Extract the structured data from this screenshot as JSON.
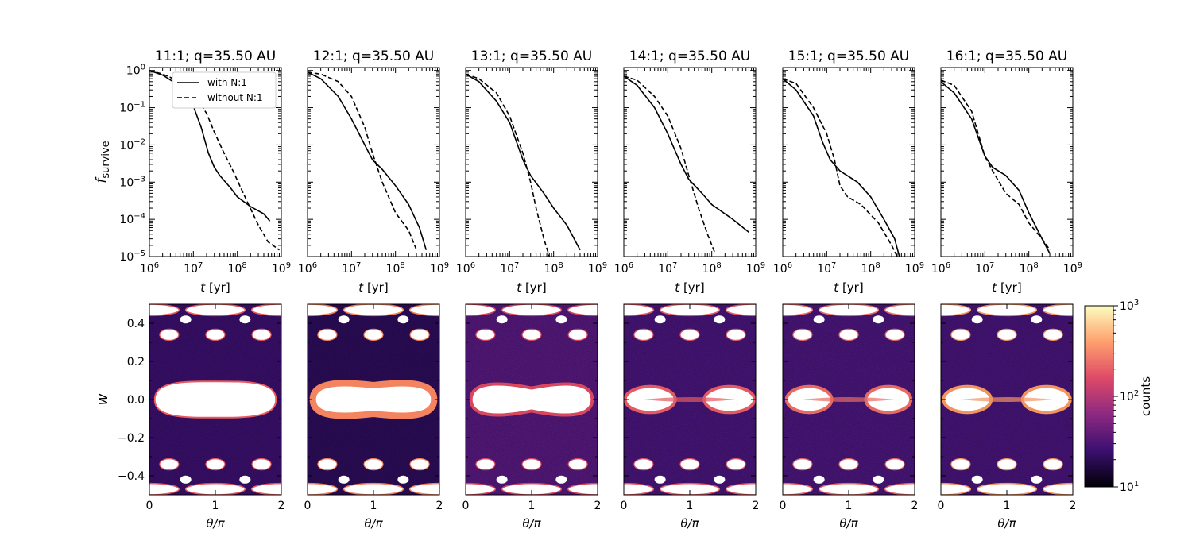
{
  "chart_data": [
    {
      "type": "line",
      "panel": "11:1",
      "title": "11:1; q=35.50 AU",
      "xlabel": "t [yr]",
      "ylabel": "f_survive",
      "xscale": "log",
      "yscale": "log",
      "xlim": [
        1000000,
        1000000000
      ],
      "ylim": [
        1e-05,
        1.2
      ],
      "xticks": [
        "10^6",
        "10^7",
        "10^8",
        "10^9"
      ],
      "yticks": [
        "10^0",
        "10^-1",
        "10^-2",
        "10^-3",
        "10^-4",
        "10^-5"
      ],
      "legend": {
        "placement": "top-right",
        "entries": [
          "with N:1",
          "without N:1"
        ]
      },
      "series": [
        {
          "name": "with N:1",
          "style": "solid",
          "points": [
            [
              1000000,
              1.0
            ],
            [
              2000000,
              0.75
            ],
            [
              5000000,
              0.38
            ],
            [
              10000000,
              0.11
            ],
            [
              15000000,
              0.03
            ],
            [
              22000000,
              0.006
            ],
            [
              30000000,
              0.0025
            ],
            [
              40000000,
              0.0015
            ],
            [
              70000000,
              0.0007
            ],
            [
              100000000,
              0.0004
            ],
            [
              200000000,
              0.00022
            ],
            [
              400000000,
              0.00014
            ],
            [
              550000000,
              9e-05
            ]
          ]
        },
        {
          "name": "without N:1",
          "style": "dashed",
          "points": [
            [
              1000000,
              1.0
            ],
            [
              2000000,
              0.8
            ],
            [
              5000000,
              0.5
            ],
            [
              10000000,
              0.25
            ],
            [
              20000000,
              0.07
            ],
            [
              30000000,
              0.022
            ],
            [
              50000000,
              0.006
            ],
            [
              80000000,
              0.002
            ],
            [
              120000000,
              0.0007
            ],
            [
              180000000,
              0.00025
            ],
            [
              300000000,
              7e-05
            ],
            [
              500000000,
              2.5e-05
            ],
            [
              900000000,
              1.5e-05
            ]
          ]
        }
      ]
    },
    {
      "type": "line",
      "panel": "12:1",
      "title": "12:1; q=35.50 AU",
      "xlabel": "t [yr]",
      "xscale": "log",
      "yscale": "log",
      "xlim": [
        1000000,
        1000000000
      ],
      "ylim": [
        1e-05,
        1.2
      ],
      "xticks": [
        "10^6",
        "10^7",
        "10^8",
        "10^9"
      ],
      "series": [
        {
          "name": "with N:1",
          "style": "solid",
          "points": [
            [
              1000000,
              0.9
            ],
            [
              2000000,
              0.6
            ],
            [
              5000000,
              0.2
            ],
            [
              10000000,
              0.05
            ],
            [
              20000000,
              0.01
            ],
            [
              30000000,
              0.004
            ],
            [
              50000000,
              0.0022
            ],
            [
              100000000,
              0.0008
            ],
            [
              200000000,
              0.00025
            ],
            [
              350000000,
              6e-05
            ],
            [
              500000000,
              1.5e-05
            ]
          ]
        },
        {
          "name": "without N:1",
          "style": "dashed",
          "points": [
            [
              1000000,
              0.9
            ],
            [
              2000000,
              0.8
            ],
            [
              5000000,
              0.5
            ],
            [
              10000000,
              0.2
            ],
            [
              20000000,
              0.03
            ],
            [
              30000000,
              0.006
            ],
            [
              50000000,
              0.001
            ],
            [
              100000000,
              0.00015
            ],
            [
              200000000,
              5e-05
            ],
            [
              300000000,
              1.5e-05
            ]
          ]
        }
      ]
    },
    {
      "type": "line",
      "panel": "13:1",
      "title": "13:1; q=35.50 AU",
      "xlabel": "t [yr]",
      "xscale": "log",
      "yscale": "log",
      "xlim": [
        1000000,
        1000000000
      ],
      "ylim": [
        1e-05,
        1.2
      ],
      "xticks": [
        "10^6",
        "10^7",
        "10^8",
        "10^9"
      ],
      "series": [
        {
          "name": "with N:1",
          "style": "solid",
          "points": [
            [
              1000000,
              0.8
            ],
            [
              2000000,
              0.5
            ],
            [
              5000000,
              0.15
            ],
            [
              10000000,
              0.04
            ],
            [
              20000000,
              0.004
            ],
            [
              30000000,
              0.0015
            ],
            [
              60000000,
              0.0005
            ],
            [
              100000000,
              0.0002
            ],
            [
              200000000,
              7e-05
            ],
            [
              400000000,
              1.5e-05
            ]
          ]
        },
        {
          "name": "without N:1",
          "style": "dashed",
          "points": [
            [
              1000000,
              0.8
            ],
            [
              2000000,
              0.6
            ],
            [
              5000000,
              0.25
            ],
            [
              10000000,
              0.06
            ],
            [
              20000000,
              0.006
            ],
            [
              30000000,
              0.001
            ],
            [
              40000000,
              0.0002
            ],
            [
              60000000,
              3e-05
            ],
            [
              80000000,
              1e-05
            ]
          ]
        }
      ]
    },
    {
      "type": "line",
      "panel": "14:1",
      "title": "14:1; q=35.50 AU",
      "xlabel": "t [yr]",
      "xscale": "log",
      "yscale": "log",
      "xlim": [
        1000000,
        1000000000
      ],
      "ylim": [
        1e-05,
        1.2
      ],
      "xticks": [
        "10^6",
        "10^7",
        "10^8",
        "10^9"
      ],
      "series": [
        {
          "name": "with N:1",
          "style": "solid",
          "points": [
            [
              1000000,
              0.7
            ],
            [
              2000000,
              0.4
            ],
            [
              5000000,
              0.1
            ],
            [
              10000000,
              0.02
            ],
            [
              20000000,
              0.003
            ],
            [
              30000000,
              0.0012
            ],
            [
              60000000,
              0.0005
            ],
            [
              100000000,
              0.00025
            ],
            [
              300000000,
              0.0001
            ],
            [
              700000000,
              4.5e-05
            ]
          ]
        },
        {
          "name": "without N:1",
          "style": "dashed",
          "points": [
            [
              1000000,
              0.7
            ],
            [
              2000000,
              0.55
            ],
            [
              5000000,
              0.2
            ],
            [
              10000000,
              0.06
            ],
            [
              20000000,
              0.008
            ],
            [
              30000000,
              0.0015
            ],
            [
              50000000,
              0.0002
            ],
            [
              80000000,
              4e-05
            ],
            [
              120000000,
              1.2e-05
            ]
          ]
        }
      ]
    },
    {
      "type": "line",
      "panel": "15:1",
      "title": "15:1; q=35.50 AU",
      "xlabel": "t [yr]",
      "xscale": "log",
      "yscale": "log",
      "xlim": [
        1000000,
        1000000000
      ],
      "ylim": [
        1e-05,
        1.2
      ],
      "xticks": [
        "10^6",
        "10^7",
        "10^8",
        "10^9"
      ],
      "series": [
        {
          "name": "with N:1",
          "style": "solid",
          "points": [
            [
              1000000,
              0.6
            ],
            [
              2000000,
              0.3
            ],
            [
              5000000,
              0.06
            ],
            [
              8000000,
              0.012
            ],
            [
              12000000,
              0.004
            ],
            [
              20000000,
              0.002
            ],
            [
              50000000,
              0.001
            ],
            [
              100000000,
              0.0004
            ],
            [
              200000000,
              0.0001
            ],
            [
              350000000,
              3e-05
            ],
            [
              450000000,
              1e-05
            ]
          ]
        },
        {
          "name": "without N:1",
          "style": "dashed",
          "points": [
            [
              1000000,
              0.6
            ],
            [
              2000000,
              0.45
            ],
            [
              5000000,
              0.1
            ],
            [
              10000000,
              0.02
            ],
            [
              15000000,
              0.004
            ],
            [
              20000000,
              0.0008
            ],
            [
              30000000,
              0.0004
            ],
            [
              60000000,
              0.00025
            ],
            [
              150000000,
              8e-05
            ],
            [
              300000000,
              2e-05
            ],
            [
              400000000,
              1e-05
            ]
          ]
        }
      ]
    },
    {
      "type": "line",
      "panel": "16:1",
      "title": "16:1; q=35.50 AU",
      "xlabel": "t [yr]",
      "xscale": "log",
      "yscale": "log",
      "xlim": [
        1000000,
        1000000000
      ],
      "ylim": [
        1e-05,
        1.2
      ],
      "xticks": [
        "10^6",
        "10^7",
        "10^8",
        "10^9"
      ],
      "series": [
        {
          "name": "with N:1",
          "style": "solid",
          "points": [
            [
              1000000,
              0.5
            ],
            [
              2000000,
              0.25
            ],
            [
              5000000,
              0.05
            ],
            [
              10000000,
              0.005
            ],
            [
              15000000,
              0.0025
            ],
            [
              30000000,
              0.0015
            ],
            [
              60000000,
              0.0006
            ],
            [
              100000000,
              0.00015
            ],
            [
              200000000,
              3e-05
            ],
            [
              300000000,
              1.2e-05
            ]
          ]
        },
        {
          "name": "without N:1",
          "style": "dashed",
          "points": [
            [
              1000000,
              0.55
            ],
            [
              2000000,
              0.4
            ],
            [
              5000000,
              0.08
            ],
            [
              10000000,
              0.005
            ],
            [
              15000000,
              0.002
            ],
            [
              30000000,
              0.0005
            ],
            [
              60000000,
              0.00025
            ],
            [
              100000000,
              8e-05
            ],
            [
              200000000,
              3e-05
            ],
            [
              300000000,
              1.5e-05
            ]
          ]
        }
      ]
    },
    {
      "type": "heatmap",
      "panels": [
        "11:1",
        "12:1",
        "13:1",
        "14:1",
        "15:1",
        "16:1"
      ],
      "xlabel": "θ/π",
      "ylabel": "w",
      "xlim": [
        0,
        2
      ],
      "ylim": [
        -0.5,
        0.5
      ],
      "xticks": [
        "0",
        "1",
        "2"
      ],
      "yticks": [
        "0.4",
        "0.2",
        "0.0",
        "−0.2",
        "−0.4"
      ],
      "colormap": "magma",
      "colorscale": "log",
      "colorbar": {
        "label": "counts",
        "ticks": [
          "10^3",
          "10^2",
          "10^1"
        ],
        "range": [
          10,
          1000
        ]
      },
      "colormap_stops": [
        "#000004",
        "#3b0f70",
        "#8c2981",
        "#de4968",
        "#fe9f6d",
        "#fcfdbf"
      ]
    }
  ]
}
